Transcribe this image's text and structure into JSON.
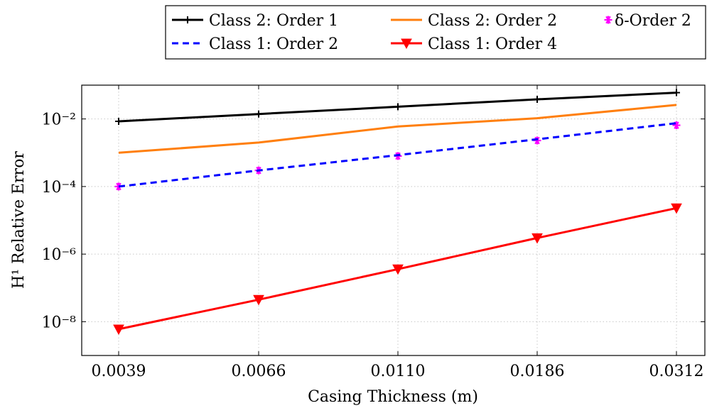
{
  "chart_data": {
    "type": "line",
    "y_scale": "log",
    "grid": true,
    "legend_position": "top",
    "xlabel": "Casing Thickness (m)",
    "ylabel": "H¹ Relative Error",
    "categories": [
      "0.0039",
      "0.0066",
      "0.0110",
      "0.0186",
      "0.0312"
    ],
    "y_ticks": [
      1e-08,
      1e-06,
      0.0001,
      0.01
    ],
    "y_tick_labels": [
      "10⁻⁸",
      "10⁻⁶",
      "10⁻⁴",
      "10⁻²"
    ],
    "ylim": [
      1e-09,
      0.1
    ],
    "series": [
      {
        "name": "Class 2: Order 1",
        "color": "#000000",
        "dash": "solid",
        "marker": "plus",
        "values": [
          0.0085,
          0.014,
          0.023,
          0.038,
          0.06
        ]
      },
      {
        "name": "Class 2: Order 2",
        "color": "#ff7f0e",
        "dash": "solid",
        "marker": "none",
        "values": [
          0.001,
          0.002,
          0.006,
          0.0105,
          0.026
        ]
      },
      {
        "name": "δ-Order 2",
        "color": "#ff00ff",
        "dash": "none",
        "marker": "asterisk",
        "values": [
          0.0001,
          0.0003,
          0.0008,
          0.0023,
          0.0065
        ]
      },
      {
        "name": "Class 1: Order 2",
        "color": "#0000ff",
        "dash": "dashed",
        "marker": "none",
        "values": [
          0.0001,
          0.0003,
          0.00085,
          0.0025,
          0.0075
        ]
      },
      {
        "name": "Class 1: Order 4",
        "color": "#ff0000",
        "dash": "solid",
        "marker": "triangle-down",
        "values": [
          6e-09,
          4.5e-08,
          3.6e-07,
          3e-06,
          2.3e-05
        ]
      }
    ]
  }
}
